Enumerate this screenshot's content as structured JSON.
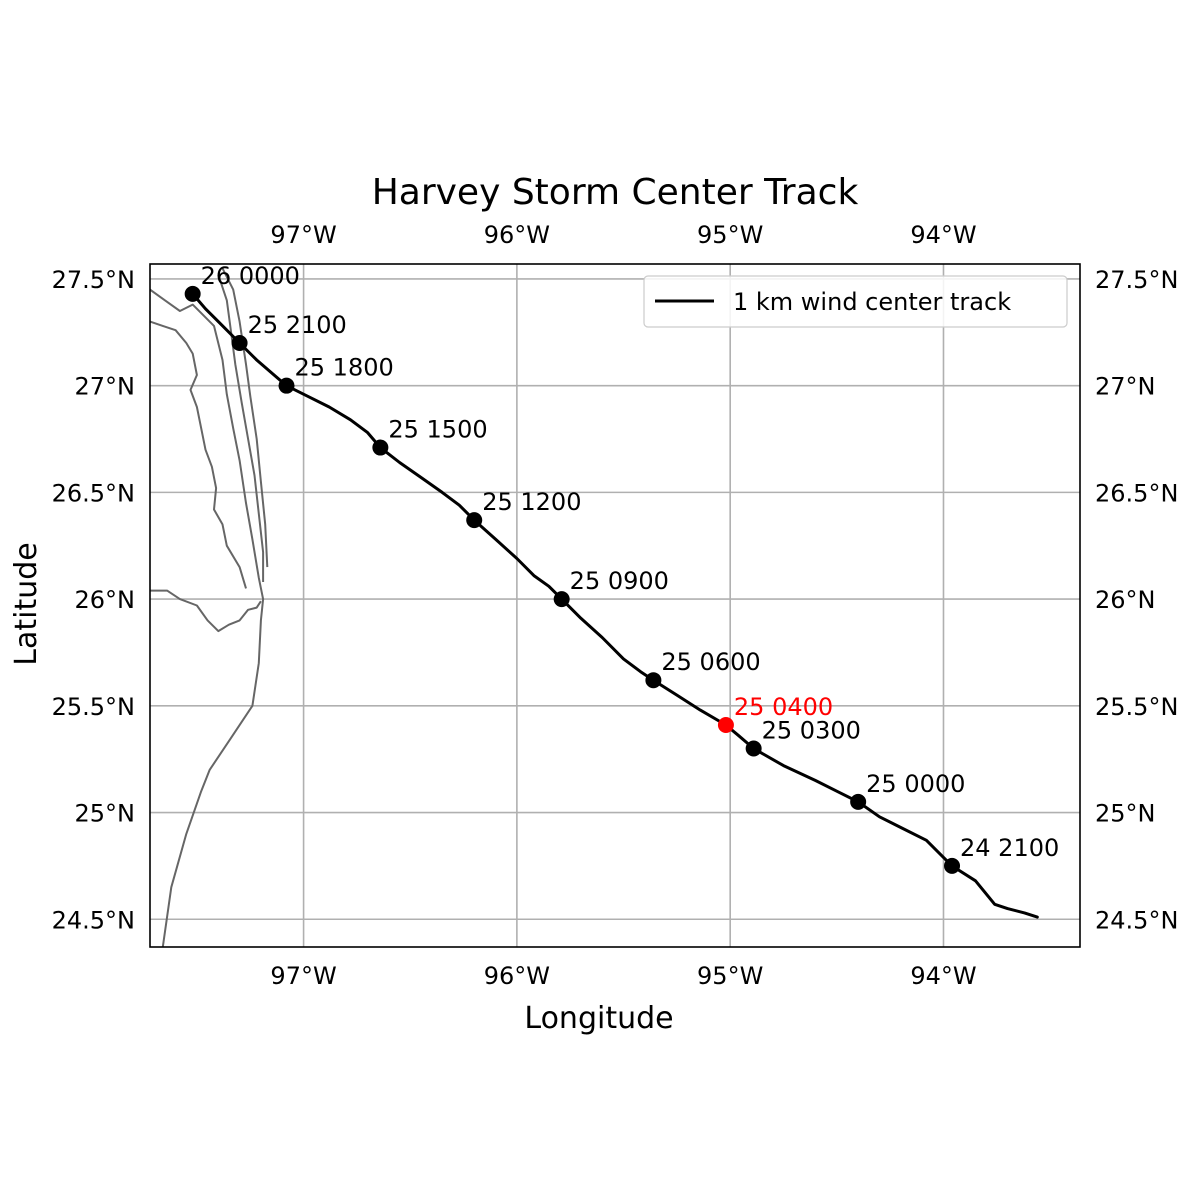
{
  "title": "Harvey Storm Center Track",
  "xlabel": "Longitude",
  "ylabel": "Latitude",
  "legend_label": "1 km wind center track",
  "x_ticks": [
    {
      "value": -97,
      "label": "97°W"
    },
    {
      "value": -96,
      "label": "96°W"
    },
    {
      "value": -95,
      "label": "95°W"
    },
    {
      "value": -94,
      "label": "94°W"
    }
  ],
  "y_ticks": [
    {
      "value": 27.5,
      "label": "27.5°N"
    },
    {
      "value": 27.0,
      "label": "27°N"
    },
    {
      "value": 26.5,
      "label": "26.5°N"
    },
    {
      "value": 26.0,
      "label": "26°N"
    },
    {
      "value": 25.5,
      "label": "25.5°N"
    },
    {
      "value": 25.0,
      "label": "25°N"
    },
    {
      "value": 24.5,
      "label": "24.5°N"
    }
  ],
  "colors": {
    "track": "#000000",
    "marker": "#000000",
    "highlight": "#ff0000",
    "coast": "#666666",
    "grid": "#b0b0b0"
  },
  "chart_data": {
    "type": "line",
    "xlim": [
      -97.72,
      -93.36
    ],
    "ylim": [
      24.37,
      27.57
    ],
    "grid": true,
    "legend_position": "top-right",
    "track": [
      [
        -97.52,
        27.43
      ],
      [
        -97.46,
        27.36
      ],
      [
        -97.4,
        27.3
      ],
      [
        -97.3,
        27.2
      ],
      [
        -97.22,
        27.12
      ],
      [
        -97.15,
        27.06
      ],
      [
        -97.08,
        27.0
      ],
      [
        -96.98,
        26.95
      ],
      [
        -96.88,
        26.9
      ],
      [
        -96.78,
        26.84
      ],
      [
        -96.7,
        26.78
      ],
      [
        -96.64,
        26.71
      ],
      [
        -96.55,
        26.64
      ],
      [
        -96.45,
        26.57
      ],
      [
        -96.35,
        26.5
      ],
      [
        -96.27,
        26.44
      ],
      [
        -96.2,
        26.37
      ],
      [
        -96.1,
        26.28
      ],
      [
        -96.0,
        26.19
      ],
      [
        -95.92,
        26.11
      ],
      [
        -95.85,
        26.06
      ],
      [
        -95.79,
        26.0
      ],
      [
        -95.7,
        25.91
      ],
      [
        -95.6,
        25.82
      ],
      [
        -95.5,
        25.72
      ],
      [
        -95.42,
        25.66
      ],
      [
        -95.36,
        25.62
      ],
      [
        -95.25,
        25.55
      ],
      [
        -95.14,
        25.48
      ],
      [
        -95.02,
        25.41
      ],
      [
        -94.96,
        25.36
      ],
      [
        -94.89,
        25.3
      ],
      [
        -94.75,
        25.22
      ],
      [
        -94.6,
        25.15
      ],
      [
        -94.5,
        25.1
      ],
      [
        -94.4,
        25.05
      ],
      [
        -94.3,
        24.98
      ],
      [
        -94.2,
        24.93
      ],
      [
        -94.08,
        24.87
      ],
      [
        -93.96,
        24.75
      ],
      [
        -93.85,
        24.68
      ],
      [
        -93.76,
        24.57
      ],
      [
        -93.7,
        24.55
      ],
      [
        -93.62,
        24.53
      ],
      [
        -93.56,
        24.51
      ]
    ],
    "points": [
      {
        "label": "26 0000",
        "lon": -97.52,
        "lat": 27.43,
        "highlight": false
      },
      {
        "label": "25 2100",
        "lon": -97.3,
        "lat": 27.2,
        "highlight": false
      },
      {
        "label": "25 1800",
        "lon": -97.08,
        "lat": 27.0,
        "highlight": false
      },
      {
        "label": "25 1500",
        "lon": -96.64,
        "lat": 26.71,
        "highlight": false
      },
      {
        "label": "25 1200",
        "lon": -96.2,
        "lat": 26.37,
        "highlight": false
      },
      {
        "label": "25 0900",
        "lon": -95.79,
        "lat": 26.0,
        "highlight": false
      },
      {
        "label": "25 0600",
        "lon": -95.36,
        "lat": 25.62,
        "highlight": false
      },
      {
        "label": "25 0400",
        "lon": -95.02,
        "lat": 25.41,
        "highlight": true
      },
      {
        "label": "25 0300",
        "lon": -94.89,
        "lat": 25.3,
        "highlight": false
      },
      {
        "label": "25 0000",
        "lon": -94.4,
        "lat": 25.05,
        "highlight": false
      },
      {
        "label": "24 2100",
        "lon": -93.96,
        "lat": 24.75,
        "highlight": false
      }
    ],
    "coastlines": [
      [
        [
          -97.72,
          27.45
        ],
        [
          -97.65,
          27.4
        ],
        [
          -97.58,
          27.35
        ],
        [
          -97.52,
          27.38
        ],
        [
          -97.47,
          27.33
        ],
        [
          -97.42,
          27.28
        ],
        [
          -97.38,
          27.12
        ],
        [
          -97.36,
          26.96
        ],
        [
          -97.33,
          26.8
        ],
        [
          -97.3,
          26.65
        ],
        [
          -97.27,
          26.45
        ],
        [
          -97.24,
          26.28
        ],
        [
          -97.21,
          26.1
        ],
        [
          -97.19,
          26.0
        ],
        [
          -97.2,
          25.9
        ],
        [
          -97.21,
          25.7
        ],
        [
          -97.24,
          25.5
        ],
        [
          -97.34,
          25.35
        ],
        [
          -97.44,
          25.2
        ],
        [
          -97.48,
          25.1
        ],
        [
          -97.55,
          24.9
        ],
        [
          -97.62,
          24.65
        ],
        [
          -97.66,
          24.37
        ]
      ],
      [
        [
          -97.4,
          27.52
        ],
        [
          -97.36,
          27.4
        ],
        [
          -97.34,
          27.25
        ],
        [
          -97.32,
          27.1
        ],
        [
          -97.29,
          26.92
        ],
        [
          -97.26,
          26.75
        ],
        [
          -97.23,
          26.58
        ],
        [
          -97.21,
          26.4
        ],
        [
          -97.19,
          26.22
        ],
        [
          -97.19,
          26.08
        ]
      ],
      [
        [
          -97.38,
          27.55
        ],
        [
          -97.33,
          27.45
        ],
        [
          -97.3,
          27.3
        ],
        [
          -97.27,
          27.1
        ],
        [
          -97.25,
          26.95
        ],
        [
          -97.22,
          26.75
        ],
        [
          -97.2,
          26.55
        ],
        [
          -97.18,
          26.35
        ],
        [
          -97.17,
          26.15
        ]
      ],
      [
        [
          -97.72,
          26.04
        ],
        [
          -97.64,
          26.04
        ],
        [
          -97.58,
          26.0
        ],
        [
          -97.5,
          25.97
        ],
        [
          -97.45,
          25.9
        ],
        [
          -97.4,
          25.85
        ],
        [
          -97.35,
          25.88
        ],
        [
          -97.3,
          25.9
        ],
        [
          -97.26,
          25.95
        ],
        [
          -97.22,
          25.96
        ],
        [
          -97.2,
          25.99
        ]
      ],
      [
        [
          -97.72,
          27.3
        ],
        [
          -97.66,
          27.28
        ],
        [
          -97.6,
          27.26
        ],
        [
          -97.55,
          27.2
        ],
        [
          -97.52,
          27.15
        ],
        [
          -97.5,
          27.05
        ],
        [
          -97.53,
          26.98
        ],
        [
          -97.5,
          26.9
        ],
        [
          -97.48,
          26.8
        ],
        [
          -97.46,
          26.7
        ],
        [
          -97.43,
          26.62
        ],
        [
          -97.41,
          26.52
        ],
        [
          -97.42,
          26.42
        ],
        [
          -97.38,
          26.35
        ],
        [
          -97.36,
          26.25
        ],
        [
          -97.3,
          26.15
        ],
        [
          -97.27,
          26.05
        ]
      ]
    ]
  }
}
